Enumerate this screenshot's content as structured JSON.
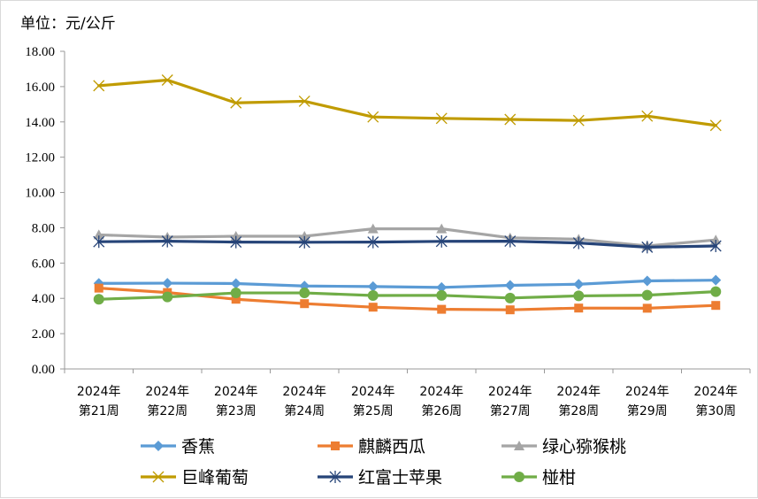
{
  "chart_data": {
    "type": "line",
    "unit_label": "单位：元/公斤",
    "y_ticks": [
      "0.00",
      "2.00",
      "4.00",
      "6.00",
      "8.00",
      "10.00",
      "12.00",
      "14.00",
      "16.00",
      "18.00"
    ],
    "ylim": [
      0,
      18
    ],
    "categories": [
      [
        "2024年",
        "第21周"
      ],
      [
        "2024年",
        "第22周"
      ],
      [
        "2024年",
        "第23周"
      ],
      [
        "2024年",
        "第24周"
      ],
      [
        "2024年",
        "第25周"
      ],
      [
        "2024年",
        "第26周"
      ],
      [
        "2024年",
        "第27周"
      ],
      [
        "2024年",
        "第28周"
      ],
      [
        "2024年",
        "第29周"
      ],
      [
        "2024年",
        "第30周"
      ]
    ],
    "legend_position": "bottom",
    "series": [
      {
        "name": "香蕉",
        "color": "#5b9bd5",
        "marker": "diamond",
        "values": [
          4.85,
          4.86,
          4.84,
          4.7,
          4.67,
          4.62,
          4.74,
          4.8,
          4.99,
          5.03
        ]
      },
      {
        "name": "麒麟西瓜",
        "color": "#ed7d31",
        "marker": "square",
        "values": [
          4.58,
          4.33,
          3.95,
          3.7,
          3.5,
          3.38,
          3.35,
          3.45,
          3.44,
          3.6
        ]
      },
      {
        "name": "绿心猕猴桃",
        "color": "#a5a5a5",
        "marker": "triangle",
        "values": [
          7.6,
          7.47,
          7.52,
          7.52,
          7.94,
          7.94,
          7.43,
          7.35,
          6.97,
          7.31
        ]
      },
      {
        "name": "巨峰葡萄",
        "color": "#c09b00",
        "marker": "x",
        "values": [
          16.05,
          16.37,
          15.08,
          15.17,
          14.28,
          14.2,
          14.14,
          14.08,
          14.33,
          13.8
        ]
      },
      {
        "name": "红富士苹果",
        "color": "#264478",
        "marker": "star",
        "values": [
          7.21,
          7.24,
          7.19,
          7.18,
          7.19,
          7.23,
          7.24,
          7.14,
          6.9,
          6.97
        ]
      },
      {
        "name": "椪柑",
        "color": "#70ad47",
        "marker": "circle",
        "values": [
          3.95,
          4.08,
          4.31,
          4.31,
          4.16,
          4.17,
          4.02,
          4.14,
          4.18,
          4.38
        ]
      }
    ]
  }
}
